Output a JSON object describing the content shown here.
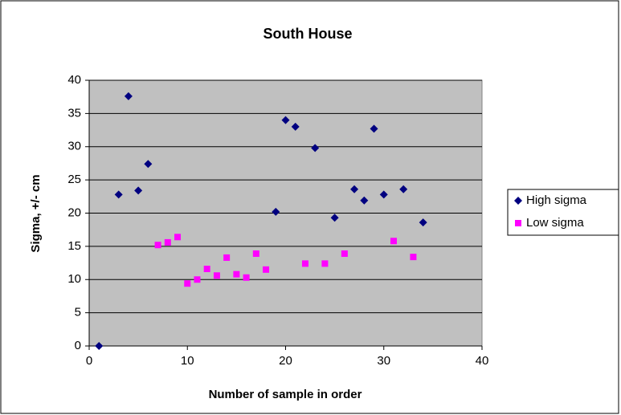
{
  "chart_data": {
    "type": "scatter",
    "title": "South House",
    "x_label": "Number of sample in order",
    "y_label": "Sigma, +/- cm",
    "xlim": [
      0,
      40
    ],
    "xticks": [
      0,
      10,
      20,
      30,
      40
    ],
    "ylim": [
      0,
      40
    ],
    "yticks": [
      0,
      5,
      10,
      15,
      20,
      25,
      30,
      35,
      40
    ],
    "grid": true,
    "legend": "right",
    "series": [
      {
        "name": "High sigma",
        "color": "#000080",
        "marker": "diamond",
        "x": [
          1,
          3,
          4,
          5,
          6,
          19,
          20,
          21,
          23,
          25,
          27,
          28,
          29,
          30,
          32,
          34
        ],
        "values": [
          0,
          22.8,
          37.6,
          23.4,
          27.4,
          20.2,
          34.0,
          33.0,
          29.8,
          19.3,
          23.6,
          21.9,
          32.7,
          22.8,
          23.6,
          18.6
        ]
      },
      {
        "name": "Low sigma",
        "color": "#ff00ff",
        "marker": "square",
        "x": [
          7,
          8,
          9,
          10,
          11,
          12,
          13,
          14,
          15,
          16,
          17,
          18,
          22,
          24,
          26,
          31,
          33
        ],
        "values": [
          15.2,
          15.6,
          16.4,
          9.4,
          10.0,
          11.6,
          10.6,
          13.3,
          10.8,
          10.3,
          13.9,
          11.5,
          12.4,
          12.4,
          13.9,
          15.8,
          13.4
        ]
      }
    ]
  }
}
